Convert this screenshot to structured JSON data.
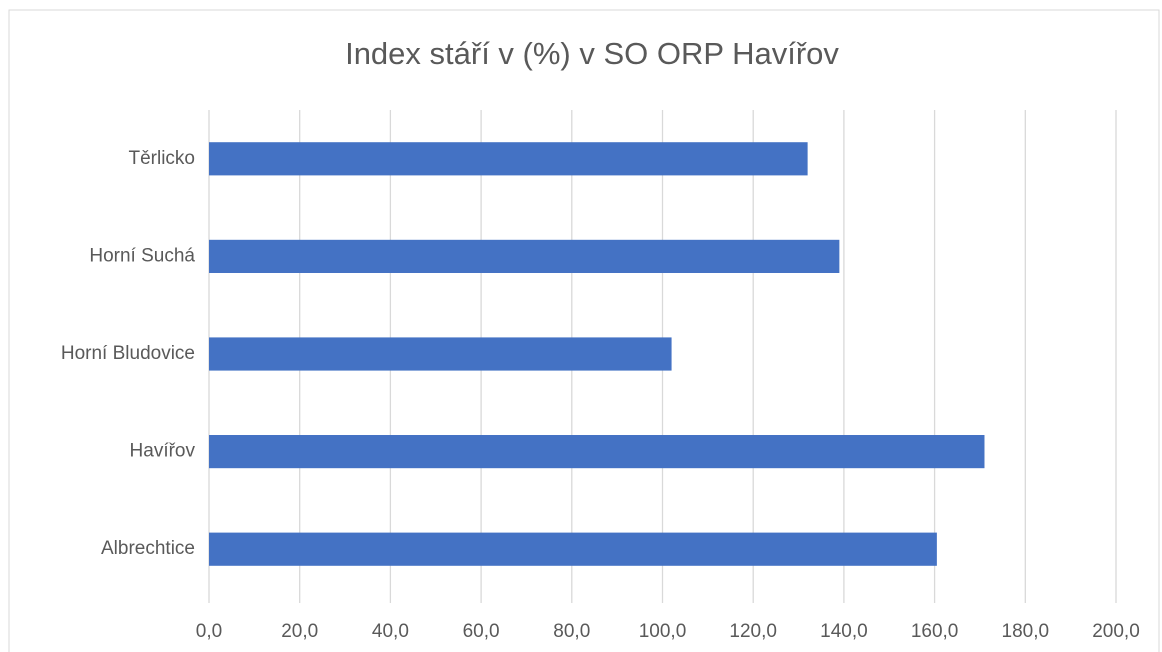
{
  "chart_data": {
    "type": "bar",
    "orientation": "horizontal",
    "title": "Index stáří v (%) v SO ORP Havířov",
    "categories": [
      "Albrechtice",
      "Havířov",
      "Horní Bludovice",
      "Horní Suchá",
      "Těrlicko"
    ],
    "values": [
      160.5,
      171,
      102,
      139,
      132
    ],
    "color": "#4472c4",
    "xlim": [
      0,
      200
    ],
    "xticks": [
      {
        "value": 0,
        "label": "0,0"
      },
      {
        "value": 20,
        "label": "20,0"
      },
      {
        "value": 40,
        "label": "40,0"
      },
      {
        "value": 60,
        "label": "60,0"
      },
      {
        "value": 80,
        "label": "80,0"
      },
      {
        "value": 100,
        "label": "100,0"
      },
      {
        "value": 120,
        "label": "120,0"
      },
      {
        "value": 140,
        "label": "140,0"
      },
      {
        "value": 160,
        "label": "160,0"
      },
      {
        "value": 180,
        "label": "180,0"
      },
      {
        "value": 200,
        "label": "200,0"
      }
    ],
    "grid": true
  }
}
